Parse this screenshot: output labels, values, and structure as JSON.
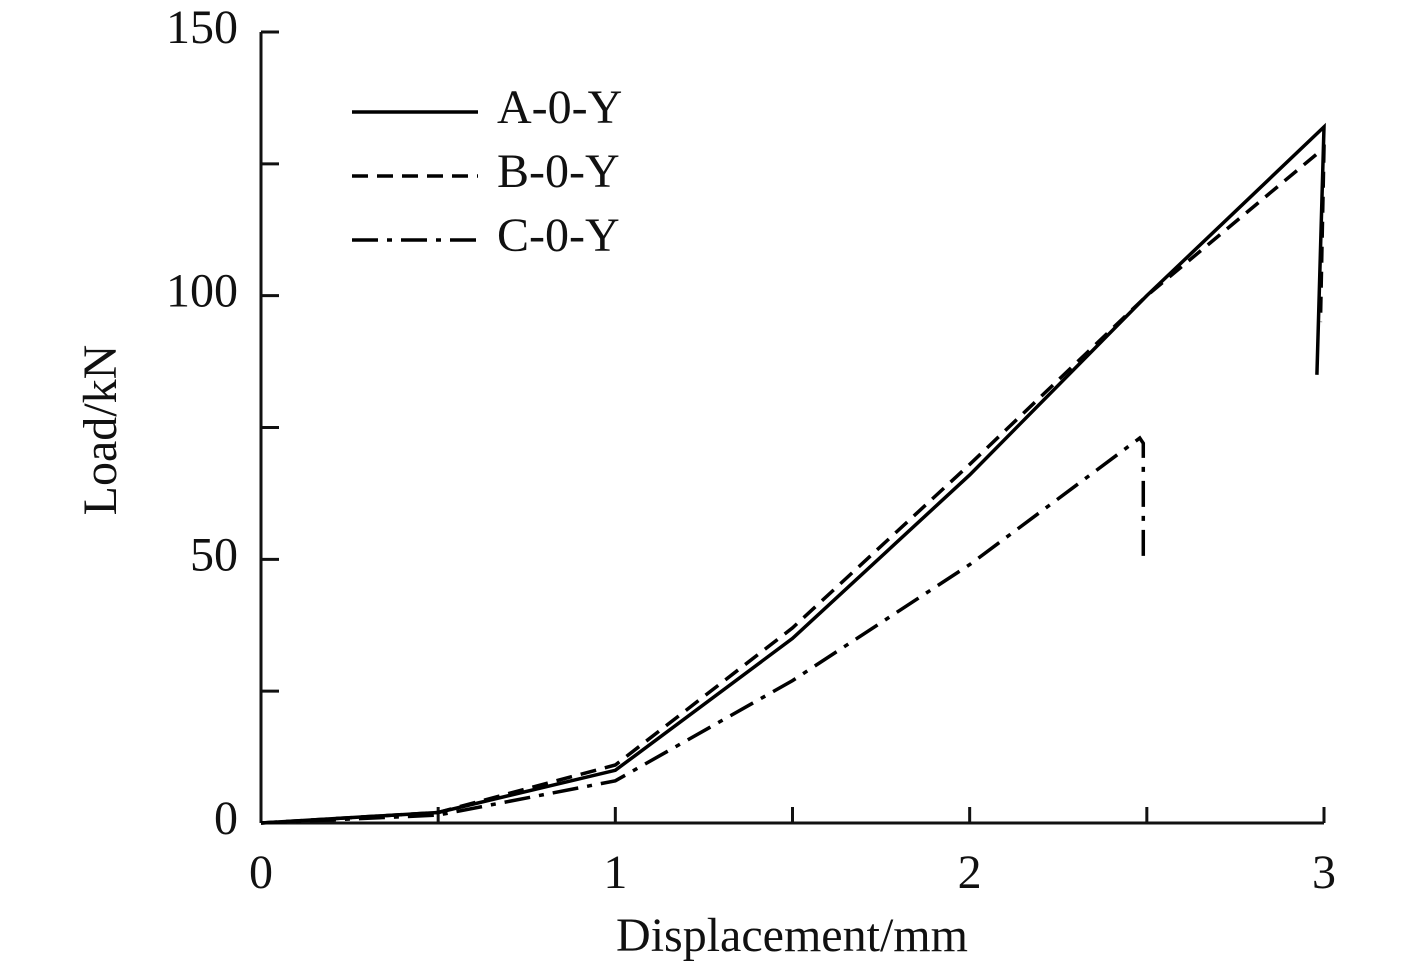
{
  "chart_data": {
    "type": "line",
    "xlabel": "Displacement/mm",
    "ylabel": "Load/kN",
    "xlim": [
      0,
      3
    ],
    "xticks": [
      0,
      1,
      2,
      3
    ],
    "xminorticks": [
      0.5,
      1.5,
      2.5
    ],
    "ylim": [
      0,
      150
    ],
    "yticks": [
      0,
      50,
      100,
      150
    ],
    "yminorticks": [
      25,
      75,
      125
    ],
    "legend": "upper-left",
    "series": [
      {
        "name": "A-0-Y",
        "color": "#000000",
        "dash": "solid",
        "x": [
          0,
          0.5,
          1,
          1.5,
          2,
          2.5,
          3,
          2.98
        ],
        "values": [
          0,
          2,
          10,
          35,
          66,
          100,
          132,
          85
        ]
      },
      {
        "name": "B-0-Y",
        "color": "#000000",
        "dash": "dashed",
        "x": [
          0,
          0.5,
          1,
          1.5,
          2,
          2.5,
          3,
          2.99
        ],
        "values": [
          0,
          2,
          11,
          37,
          68,
          100,
          128,
          95
        ]
      },
      {
        "name": "C-0-Y",
        "color": "#000000",
        "dash": "dashdot",
        "x": [
          0,
          0.5,
          1,
          1.5,
          2,
          2.48,
          2.49,
          2.49
        ],
        "values": [
          0,
          1.5,
          8,
          27,
          49,
          73,
          72,
          49
        ]
      }
    ]
  }
}
